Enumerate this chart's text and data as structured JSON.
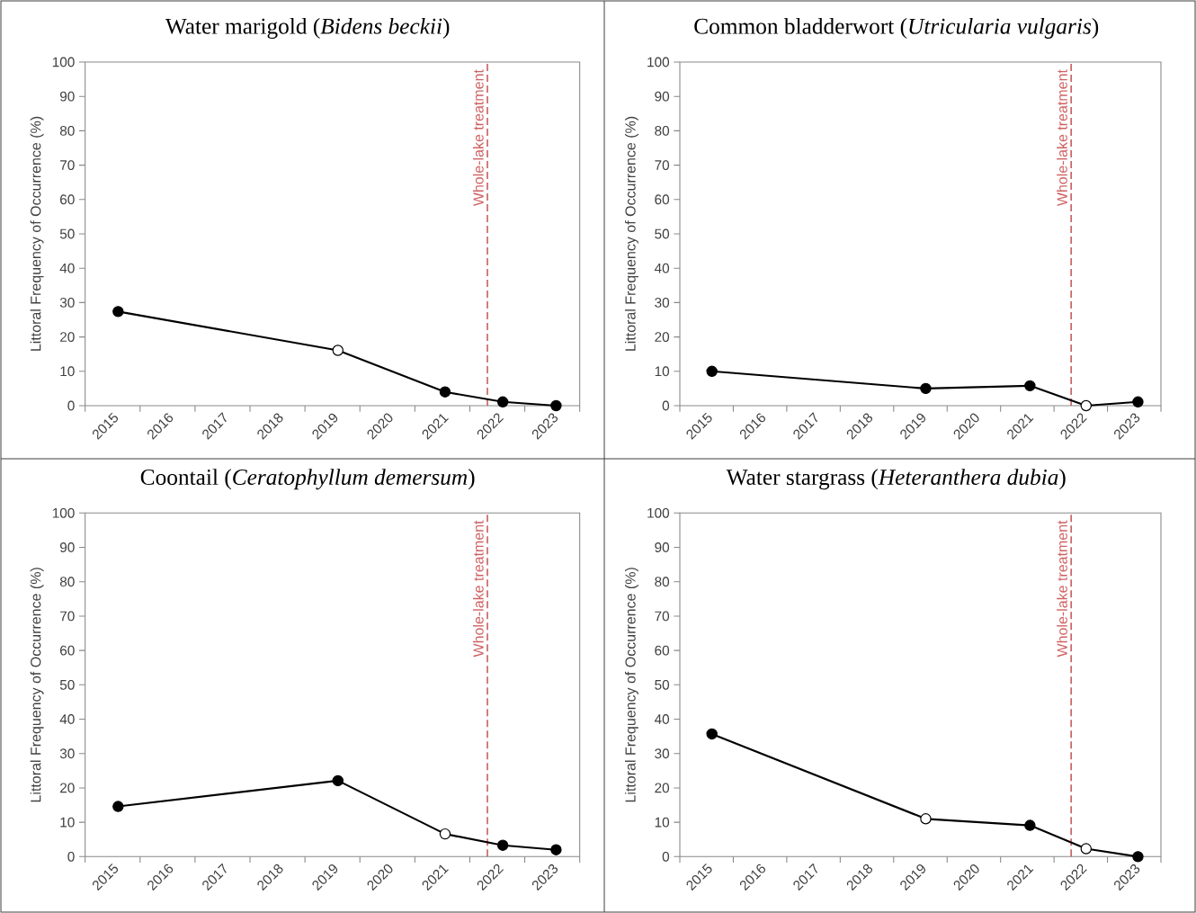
{
  "chart_data": [
    {
      "type": "line",
      "title": "Water marigold (*Bidens beckii*)",
      "ylabel": "Littoral Frequency of Occurrence (%)",
      "x": [
        2015.6,
        2019.6,
        2021.55,
        2022.6,
        2023.57
      ],
      "series": [
        {
          "color": "#000000",
          "colors": [
            "#000000",
            "#ffffff",
            "#000000",
            "#000000",
            "#000000"
          ],
          "values": [
            27.4,
            16.1,
            4.0,
            1.1,
            0
          ]
        }
      ],
      "marker": "circle",
      "xlim": [
        2015,
        2024
      ],
      "ylim": [
        0,
        100
      ],
      "xticks": [
        {
          "value": 2015,
          "label": null
        },
        {
          "value": 2016,
          "label": null
        },
        {
          "value": 2017,
          "label": null
        },
        {
          "value": 2018,
          "label": null
        },
        {
          "value": 2019,
          "label": null
        },
        {
          "value": 2020,
          "label": null
        },
        {
          "value": 2021,
          "label": null
        },
        {
          "value": 2022,
          "label": null
        },
        {
          "value": 2023,
          "label": null
        },
        {
          "value": 2024,
          "label": null
        },
        {
          "value": 2015.5,
          "label": "2015"
        },
        {
          "value": 2016.5,
          "label": "2016"
        },
        {
          "value": 2017.5,
          "label": "2017"
        },
        {
          "value": 2018.5,
          "label": "2018"
        },
        {
          "value": 2019.5,
          "label": "2019"
        },
        {
          "value": 2020.5,
          "label": "2020"
        },
        {
          "value": 2021.5,
          "label": "2021"
        },
        {
          "value": 2022.5,
          "label": "2022"
        },
        {
          "value": 2023.5,
          "label": "2023"
        }
      ],
      "yticks": [
        0,
        10,
        20,
        30,
        40,
        50,
        60,
        70,
        80,
        90,
        100
      ],
      "ref_lines": [
        {
          "axis": "x",
          "value": 2022.32,
          "label": "Whole-lake treatment",
          "color": "#c0504d",
          "line_style": "dashed"
        }
      ]
    },
    {
      "type": "line",
      "title": "Common bladderwort (*Utricularia vulgaris*)",
      "ylabel": "Littoral Frequency of Occurrence (%)",
      "x": [
        2015.6,
        2019.6,
        2021.55,
        2022.6,
        2023.57
      ],
      "series": [
        {
          "color": "#000000",
          "colors": [
            "#000000",
            "#000000",
            "#000000",
            "#ffffff",
            "#000000"
          ],
          "values": [
            10.0,
            5.0,
            5.8,
            0,
            1.1
          ]
        }
      ],
      "marker": "circle",
      "xlim": [
        2015,
        2024
      ],
      "ylim": [
        0,
        100
      ],
      "xticks": [
        {
          "value": 2015,
          "label": null
        },
        {
          "value": 2016,
          "label": null
        },
        {
          "value": 2017,
          "label": null
        },
        {
          "value": 2018,
          "label": null
        },
        {
          "value": 2019,
          "label": null
        },
        {
          "value": 2020,
          "label": null
        },
        {
          "value": 2021,
          "label": null
        },
        {
          "value": 2022,
          "label": null
        },
        {
          "value": 2023,
          "label": null
        },
        {
          "value": 2024,
          "label": null
        },
        {
          "value": 2015.5,
          "label": "2015"
        },
        {
          "value": 2016.5,
          "label": "2016"
        },
        {
          "value": 2017.5,
          "label": "2017"
        },
        {
          "value": 2018.5,
          "label": "2018"
        },
        {
          "value": 2019.5,
          "label": "2019"
        },
        {
          "value": 2020.5,
          "label": "2020"
        },
        {
          "value": 2021.5,
          "label": "2021"
        },
        {
          "value": 2022.5,
          "label": "2022"
        },
        {
          "value": 2023.5,
          "label": "2023"
        }
      ],
      "yticks": [
        0,
        10,
        20,
        30,
        40,
        50,
        60,
        70,
        80,
        90,
        100
      ],
      "ref_lines": [
        {
          "axis": "x",
          "value": 2022.32,
          "label": "Whole-lake treatment",
          "color": "#c0504d",
          "line_style": "dashed"
        }
      ]
    },
    {
      "type": "line",
      "title": "Coontail (*Ceratophyllum demersum*)",
      "ylabel": "Littoral Frequency of Occurrence (%)",
      "x": [
        2015.6,
        2019.6,
        2021.55,
        2022.6,
        2023.57
      ],
      "series": [
        {
          "color": "#000000",
          "colors": [
            "#000000",
            "#000000",
            "#ffffff",
            "#000000",
            "#000000"
          ],
          "values": [
            14.6,
            22.1,
            6.6,
            3.3,
            2.0
          ]
        }
      ],
      "marker": "circle",
      "xlim": [
        2015,
        2024
      ],
      "ylim": [
        0,
        100
      ],
      "xticks": [
        {
          "value": 2015,
          "label": null
        },
        {
          "value": 2016,
          "label": null
        },
        {
          "value": 2017,
          "label": null
        },
        {
          "value": 2018,
          "label": null
        },
        {
          "value": 2019,
          "label": null
        },
        {
          "value": 2020,
          "label": null
        },
        {
          "value": 2021,
          "label": null
        },
        {
          "value": 2022,
          "label": null
        },
        {
          "value": 2023,
          "label": null
        },
        {
          "value": 2024,
          "label": null
        },
        {
          "value": 2015.5,
          "label": "2015"
        },
        {
          "value": 2016.5,
          "label": "2016"
        },
        {
          "value": 2017.5,
          "label": "2017"
        },
        {
          "value": 2018.5,
          "label": "2018"
        },
        {
          "value": 2019.5,
          "label": "2019"
        },
        {
          "value": 2020.5,
          "label": "2020"
        },
        {
          "value": 2021.5,
          "label": "2021"
        },
        {
          "value": 2022.5,
          "label": "2022"
        },
        {
          "value": 2023.5,
          "label": "2023"
        }
      ],
      "yticks": [
        0,
        10,
        20,
        30,
        40,
        50,
        60,
        70,
        80,
        90,
        100
      ],
      "ref_lines": [
        {
          "axis": "x",
          "value": 2022.32,
          "label": "Whole-lake treatment",
          "color": "#c0504d",
          "line_style": "dashed"
        }
      ]
    },
    {
      "type": "line",
      "title": "Water stargrass (*Heteranthera dubia*)",
      "ylabel": "Littoral Frequency of Occurrence (%)",
      "x": [
        2015.6,
        2019.6,
        2021.55,
        2022.6,
        2023.57
      ],
      "series": [
        {
          "color": "#000000",
          "colors": [
            "#000000",
            "#ffffff",
            "#000000",
            "#ffffff",
            "#000000"
          ],
          "values": [
            35.7,
            11.0,
            9.1,
            2.3,
            0
          ]
        }
      ],
      "marker": "circle",
      "xlim": [
        2015,
        2024
      ],
      "ylim": [
        0,
        100
      ],
      "xticks": [
        {
          "value": 2015,
          "label": null
        },
        {
          "value": 2016,
          "label": null
        },
        {
          "value": 2017,
          "label": null
        },
        {
          "value": 2018,
          "label": null
        },
        {
          "value": 2019,
          "label": null
        },
        {
          "value": 2020,
          "label": null
        },
        {
          "value": 2021,
          "label": null
        },
        {
          "value": 2022,
          "label": null
        },
        {
          "value": 2023,
          "label": null
        },
        {
          "value": 2024,
          "label": null
        },
        {
          "value": 2015.5,
          "label": "2015"
        },
        {
          "value": 2016.5,
          "label": "2016"
        },
        {
          "value": 2017.5,
          "label": "2017"
        },
        {
          "value": 2018.5,
          "label": "2018"
        },
        {
          "value": 2019.5,
          "label": "2019"
        },
        {
          "value": 2020.5,
          "label": "2020"
        },
        {
          "value": 2021.5,
          "label": "2021"
        },
        {
          "value": 2022.5,
          "label": "2022"
        },
        {
          "value": 2023.5,
          "label": "2023"
        }
      ],
      "yticks": [
        0,
        10,
        20,
        30,
        40,
        50,
        60,
        70,
        80,
        90,
        100
      ],
      "ref_lines": [
        {
          "axis": "x",
          "value": 2022.32,
          "label": "Whole-lake treatment",
          "color": "#c0504d",
          "line_style": "dashed"
        }
      ]
    }
  ]
}
